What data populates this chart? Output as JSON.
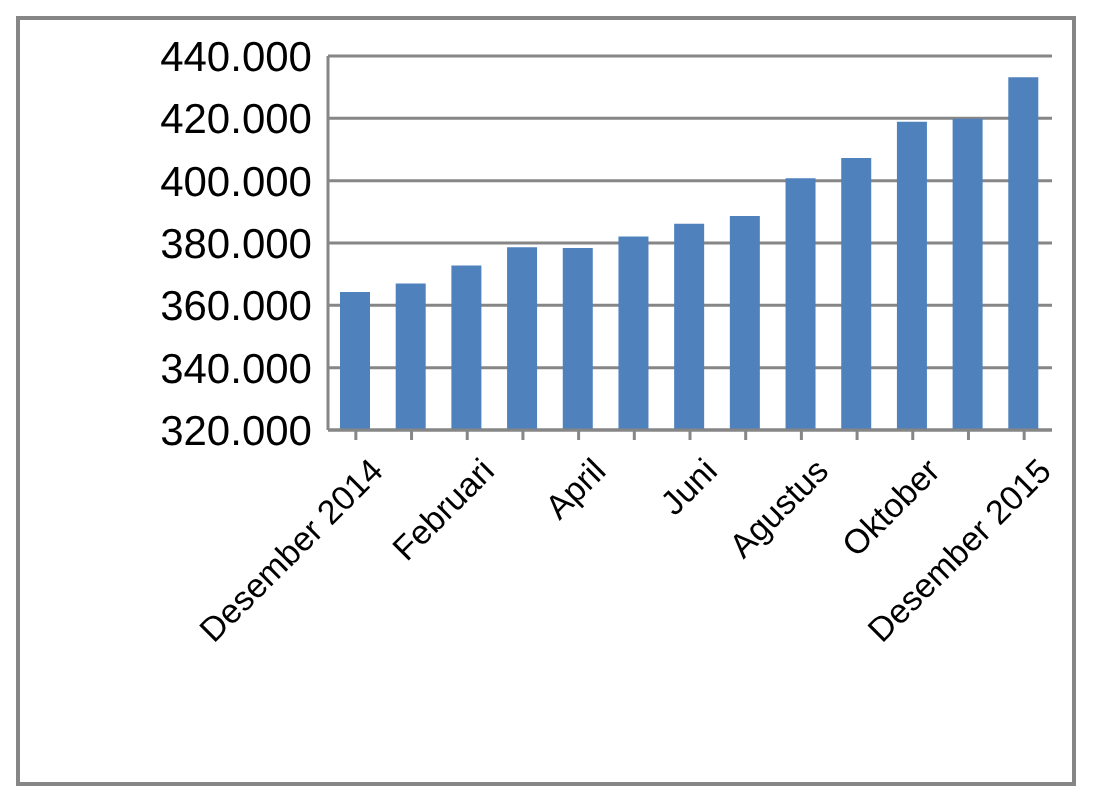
{
  "chart_data": {
    "type": "bar",
    "categories": [
      "Desember 2014",
      null,
      "Februari",
      null,
      "April",
      null,
      "Juni",
      null,
      "Agustus",
      null,
      "Oktober",
      null,
      "Desember 2015"
    ],
    "values": [
      364300,
      367000,
      372800,
      378600,
      378400,
      382100,
      386200,
      388700,
      400800,
      407300,
      418900,
      419900,
      433200
    ],
    "color": "#4f81bd",
    "ylim": [
      320000,
      440000
    ],
    "yticks": [
      {
        "value": 320000,
        "label": "320.000"
      },
      {
        "value": 340000,
        "label": "340.000"
      },
      {
        "value": 360000,
        "label": "360.000"
      },
      {
        "value": 380000,
        "label": "380.000"
      },
      {
        "value": 400000,
        "label": "400.000"
      },
      {
        "value": 420000,
        "label": "420.000"
      },
      {
        "value": 440000,
        "label": "440.000"
      }
    ],
    "grid": "y",
    "legend": false
  }
}
